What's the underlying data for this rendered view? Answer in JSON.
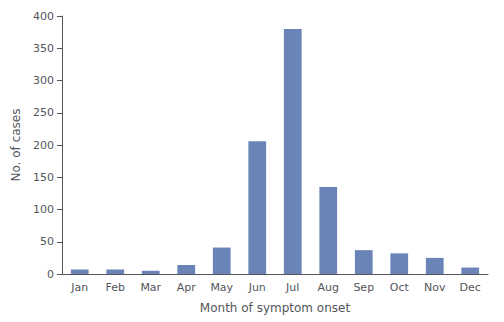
{
  "chart_data": {
    "type": "bar",
    "categories": [
      "Jan",
      "Feb",
      "Mar",
      "Apr",
      "May",
      "Jun",
      "Jul",
      "Aug",
      "Sep",
      "Oct",
      "Nov",
      "Dec"
    ],
    "values": [
      7,
      7,
      5,
      14,
      41,
      206,
      380,
      135,
      37,
      32,
      25,
      10
    ],
    "color": "#6b84b8",
    "xlabel": "Month of symptom onset",
    "ylabel": "No. of cases",
    "ylim": [
      0,
      400
    ],
    "yticks": [
      0,
      50,
      100,
      150,
      200,
      250,
      300,
      350,
      400
    ],
    "grid": false
  }
}
